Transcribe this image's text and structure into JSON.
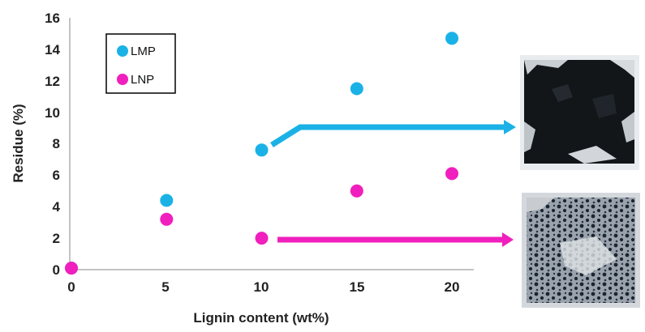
{
  "chart_data": {
    "type": "scatter",
    "xlabel": "Lignin content (wt%)",
    "ylabel": "Residue (%)",
    "xlim": [
      0,
      20
    ],
    "ylim": [
      0,
      16
    ],
    "x_ticks": [
      "0",
      "5",
      "10",
      "15",
      "20"
    ],
    "y_ticks": [
      "0",
      "2",
      "4",
      "6",
      "8",
      "10",
      "12",
      "14",
      "16"
    ],
    "grid": false,
    "legend_position": "top-left",
    "series": [
      {
        "name": "LMP",
        "color": "#1ab2e6",
        "points": [
          {
            "x": 0,
            "y": 0.1
          },
          {
            "x": 5,
            "y": 4.4
          },
          {
            "x": 10,
            "y": 7.6
          },
          {
            "x": 15,
            "y": 11.5
          },
          {
            "x": 20,
            "y": 14.7
          }
        ]
      },
      {
        "name": "LNP",
        "color": "#f01fbd",
        "points": [
          {
            "x": 0,
            "y": 0.1
          },
          {
            "x": 5,
            "y": 3.2
          },
          {
            "x": 10,
            "y": 2.0
          },
          {
            "x": 15,
            "y": 5.0
          },
          {
            "x": 20,
            "y": 6.1
          }
        ]
      }
    ],
    "annotations": [
      {
        "series": "LMP",
        "kind": "arrow-to-photo",
        "photo": "dark residue photo"
      },
      {
        "series": "LNP",
        "kind": "arrow-to-photo",
        "photo": "speckled residue photo"
      }
    ]
  }
}
